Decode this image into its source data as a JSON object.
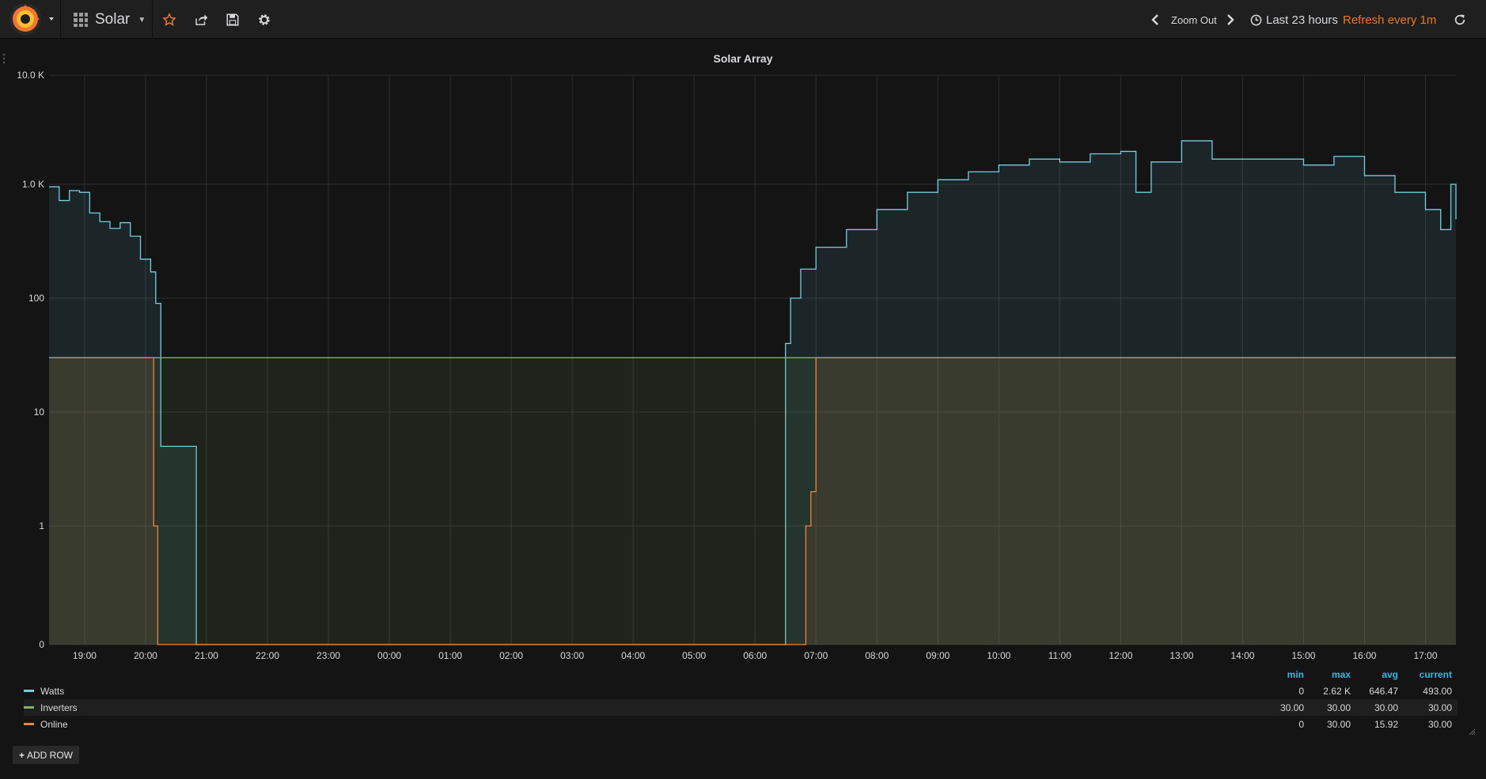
{
  "header": {
    "dashboard_title": "Solar",
    "zoom_out_label": "Zoom Out",
    "time_range_label": "Last 23 hours",
    "refresh_label": "Refresh every 1m",
    "icons": [
      "grafana-logo-icon",
      "caret-down-icon",
      "dashboard-grid-icon",
      "star-icon",
      "share-icon",
      "save-icon",
      "gear-icon",
      "chevron-left-icon",
      "chevron-right-icon",
      "clock-icon",
      "refresh-icon"
    ]
  },
  "panel": {
    "title": "Solar Array"
  },
  "chart_data": {
    "type": "line",
    "y_scale": "log",
    "y_ticks": [
      "10.0 K",
      "1.0 K",
      "100",
      "10",
      "1",
      "0"
    ],
    "x_ticks": [
      "19:00",
      "20:00",
      "21:00",
      "22:00",
      "23:00",
      "00:00",
      "01:00",
      "02:00",
      "03:00",
      "04:00",
      "05:00",
      "06:00",
      "07:00",
      "08:00",
      "09:00",
      "10:00",
      "11:00",
      "12:00",
      "13:00",
      "14:00",
      "15:00",
      "16:00",
      "17:00"
    ],
    "grid": true,
    "legend_position": "bottom",
    "series": [
      {
        "name": "Watts",
        "color": "#6ed0e0",
        "points": [
          [
            "18:25",
            950
          ],
          [
            "18:35",
            720
          ],
          [
            "18:45",
            880
          ],
          [
            "18:55",
            850
          ],
          [
            "19:05",
            560
          ],
          [
            "19:15",
            470
          ],
          [
            "19:25",
            410
          ],
          [
            "19:35",
            460
          ],
          [
            "19:45",
            350
          ],
          [
            "19:55",
            220
          ],
          [
            "20:05",
            170
          ],
          [
            "20:10",
            90
          ],
          [
            "20:15",
            5
          ],
          [
            "20:45",
            5
          ],
          [
            "20:50",
            0
          ],
          [
            "06:25",
            0
          ],
          [
            "06:30",
            40
          ],
          [
            "06:35",
            100
          ],
          [
            "06:45",
            180
          ],
          [
            "07:00",
            280
          ],
          [
            "07:30",
            400
          ],
          [
            "08:00",
            600
          ],
          [
            "08:30",
            850
          ],
          [
            "09:00",
            1100
          ],
          [
            "09:30",
            1300
          ],
          [
            "10:00",
            1500
          ],
          [
            "10:30",
            1700
          ],
          [
            "11:00",
            1600
          ],
          [
            "11:30",
            1900
          ],
          [
            "12:00",
            2000
          ],
          [
            "12:15",
            850
          ],
          [
            "12:30",
            1600
          ],
          [
            "13:00",
            2500
          ],
          [
            "13:30",
            1700
          ],
          [
            "14:00",
            1700
          ],
          [
            "14:30",
            1700
          ],
          [
            "15:00",
            1500
          ],
          [
            "15:30",
            1800
          ],
          [
            "16:00",
            1200
          ],
          [
            "16:30",
            850
          ],
          [
            "17:00",
            600
          ],
          [
            "17:15",
            400
          ],
          [
            "17:25",
            1000
          ],
          [
            "17:30",
            493
          ]
        ]
      },
      {
        "name": "Inverters",
        "color": "#7eb26d",
        "points": [
          [
            "18:25",
            30
          ],
          [
            "17:30",
            30
          ]
        ]
      },
      {
        "name": "Online",
        "color": "#ef843c",
        "points": [
          [
            "18:25",
            30
          ],
          [
            "20:05",
            30
          ],
          [
            "20:08",
            1
          ],
          [
            "20:12",
            0
          ],
          [
            "06:45",
            0
          ],
          [
            "06:50",
            1
          ],
          [
            "06:55",
            2
          ],
          [
            "07:00",
            30
          ],
          [
            "17:30",
            30
          ]
        ]
      }
    ]
  },
  "legend": {
    "columns": [
      "min",
      "max",
      "avg",
      "current"
    ],
    "rows": [
      {
        "name": "Watts",
        "min": "0",
        "max": "2.62 K",
        "avg": "646.47",
        "current": "493.00"
      },
      {
        "name": "Inverters",
        "min": "30.00",
        "max": "30.00",
        "avg": "30.00",
        "current": "30.00"
      },
      {
        "name": "Online",
        "min": "0",
        "max": "30.00",
        "avg": "15.92",
        "current": "30.00"
      }
    ]
  },
  "footer": {
    "add_row_label": "ADD ROW"
  },
  "colors": {
    "accent": "#eb7b18",
    "legend_header": "#33b5e5",
    "background": "#141414"
  }
}
